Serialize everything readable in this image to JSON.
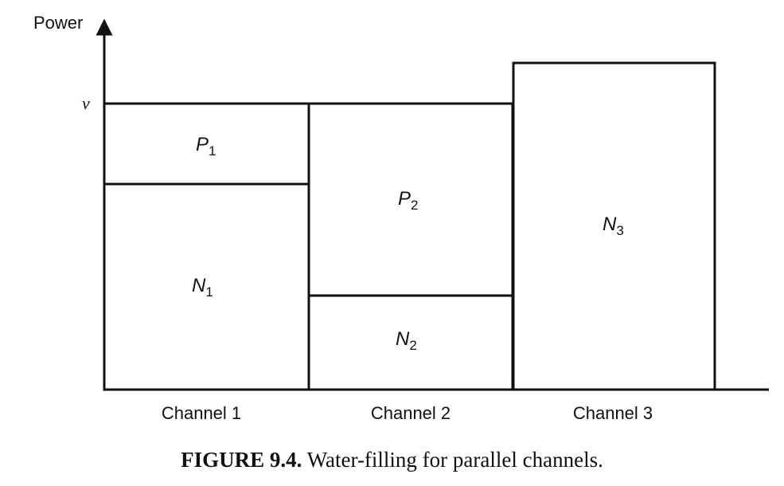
{
  "axis": {
    "ylabel": "Power",
    "water_level_label": "ν"
  },
  "regions": {
    "p1": {
      "main": "P",
      "sub": "1"
    },
    "n1": {
      "main": "N",
      "sub": "1"
    },
    "p2": {
      "main": "P",
      "sub": "2"
    },
    "n2": {
      "main": "N",
      "sub": "2"
    },
    "n3": {
      "main": "N",
      "sub": "3"
    }
  },
  "channels": [
    "Channel 1",
    "Channel 2",
    "Channel 3"
  ],
  "caption": {
    "label": "FIGURE 9.4.",
    "text": "Water-filling for parallel channels."
  }
}
